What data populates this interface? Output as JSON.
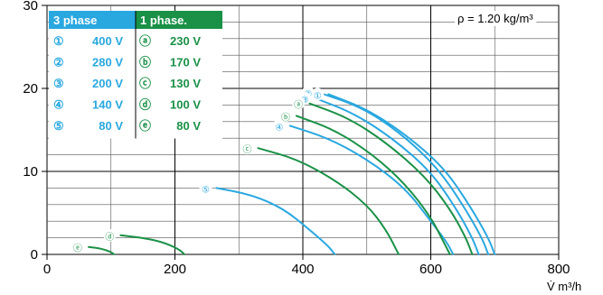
{
  "chart_data": {
    "type": "line",
    "xlim": [
      0,
      800
    ],
    "ylim": [
      0,
      30
    ],
    "xticks": [
      "0",
      "200",
      "400",
      "600",
      "800"
    ],
    "yticks": [
      "0",
      "10",
      "20",
      "30"
    ],
    "x_unit": "V̇ m³/h",
    "density_note": "ρ = 1.20 kg/m³",
    "grid": true,
    "colors": {
      "three_phase": "#29a8e0",
      "one_phase": "#1a9147"
    },
    "legend": {
      "three_phase_title": "3 phase",
      "one_phase_title": "1 phase.",
      "three_phase": [
        {
          "marker": "①",
          "voltage": "400 V"
        },
        {
          "marker": "②",
          "voltage": "280 V"
        },
        {
          "marker": "③",
          "voltage": "200 V"
        },
        {
          "marker": "④",
          "voltage": "140 V"
        },
        {
          "marker": "⑤",
          "voltage": "80 V"
        }
      ],
      "one_phase": [
        {
          "marker": "ⓐ",
          "voltage": "230 V"
        },
        {
          "marker": "ⓑ",
          "voltage": "170 V"
        },
        {
          "marker": "ⓒ",
          "voltage": "130 V"
        },
        {
          "marker": "ⓓ",
          "voltage": "100 V"
        },
        {
          "marker": "ⓔ",
          "voltage": "80 V"
        }
      ]
    },
    "series": [
      {
        "name": "①",
        "group": "three_phase",
        "points": [
          [
            440,
            19.3
          ],
          [
            500,
            17.5
          ],
          [
            560,
            14.5
          ],
          [
            620,
            10.5
          ],
          [
            660,
            6
          ],
          [
            690,
            2
          ],
          [
            700,
            0
          ]
        ]
      },
      {
        "name": "②",
        "group": "three_phase",
        "points": [
          [
            425,
            19.5
          ],
          [
            490,
            17.8
          ],
          [
            550,
            14.8
          ],
          [
            610,
            10.5
          ],
          [
            650,
            6
          ],
          [
            680,
            2
          ],
          [
            690,
            0
          ]
        ]
      },
      {
        "name": "③",
        "group": "three_phase",
        "points": [
          [
            420,
            18.8
          ],
          [
            480,
            17
          ],
          [
            540,
            14
          ],
          [
            600,
            10
          ],
          [
            640,
            5.5
          ],
          [
            665,
            2
          ],
          [
            675,
            0
          ]
        ]
      },
      {
        "name": "④",
        "group": "three_phase",
        "points": [
          [
            380,
            15.5
          ],
          [
            440,
            14
          ],
          [
            500,
            11.5
          ],
          [
            560,
            8
          ],
          [
            600,
            4
          ],
          [
            625,
            1.5
          ],
          [
            635,
            0
          ]
        ]
      },
      {
        "name": "⑤",
        "group": "three_phase",
        "points": [
          [
            265,
            8
          ],
          [
            320,
            7.2
          ],
          [
            370,
            5.5
          ],
          [
            410,
            3
          ],
          [
            440,
            1
          ],
          [
            450,
            0
          ]
        ]
      },
      {
        "name": "ⓐ",
        "group": "one_phase",
        "points": [
          [
            410,
            18.2
          ],
          [
            470,
            16.5
          ],
          [
            530,
            13.5
          ],
          [
            590,
            9.5
          ],
          [
            630,
            5.5
          ],
          [
            655,
            2
          ],
          [
            665,
            0
          ]
        ]
      },
      {
        "name": "ⓑ",
        "group": "one_phase",
        "points": [
          [
            390,
            16.7
          ],
          [
            450,
            15
          ],
          [
            510,
            12
          ],
          [
            560,
            8.5
          ],
          [
            600,
            4.5
          ],
          [
            620,
            1.5
          ],
          [
            630,
            0
          ]
        ]
      },
      {
        "name": "ⓒ",
        "group": "one_phase",
        "points": [
          [
            330,
            12.8
          ],
          [
            390,
            11.5
          ],
          [
            450,
            9
          ],
          [
            500,
            6
          ],
          [
            530,
            3
          ],
          [
            550,
            0
          ]
        ]
      },
      {
        "name": "ⓓ",
        "group": "one_phase",
        "points": [
          [
            115,
            2.3
          ],
          [
            150,
            2
          ],
          [
            180,
            1.5
          ],
          [
            205,
            0.7
          ],
          [
            215,
            0
          ]
        ]
      },
      {
        "name": "ⓔ",
        "group": "one_phase",
        "points": [
          [
            65,
            0.9
          ],
          [
            85,
            0.7
          ],
          [
            100,
            0.3
          ],
          [
            105,
            0
          ]
        ]
      }
    ]
  }
}
